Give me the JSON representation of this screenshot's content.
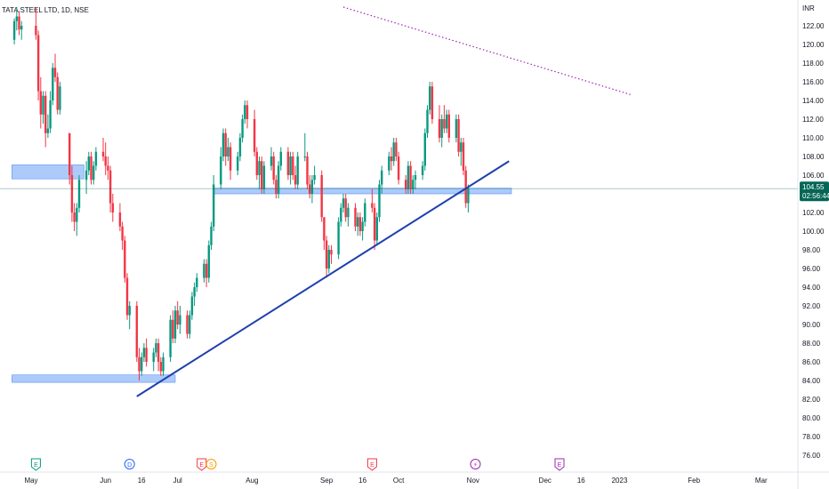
{
  "header": {
    "symbol_title": "TATA STEEL LTD, 1D, NSE"
  },
  "colors": {
    "up": "#089981",
    "down": "#f23645",
    "zone": "#90b8f8",
    "trend": "#1e3fae",
    "dotted": "#9c27b0",
    "price": "#056656",
    "event_e": "#089981",
    "event_d": "#2962ff",
    "event_er": "#f23645",
    "event_s": "#ff9800",
    "event_split": "#9c27b0"
  },
  "chart_data": {
    "type": "candlestick",
    "title": "TATA STEEL LTD, 1D, NSE",
    "currency_label": "INR",
    "y_range": [
      75,
      124
    ],
    "y_ticks": [
      "122.00",
      "120.00",
      "118.00",
      "116.00",
      "114.00",
      "112.00",
      "110.00",
      "108.00",
      "106.00",
      "104.00",
      "102.00",
      "100.00",
      "98.00",
      "96.00",
      "94.00",
      "92.00",
      "90.00",
      "88.00",
      "86.00",
      "84.00",
      "82.00",
      "80.00",
      "78.00",
      "76.00"
    ],
    "x_labels": [
      {
        "label": "May",
        "day": 0
      },
      {
        "label": "Jun",
        "day": 31
      },
      {
        "label": "16",
        "day": 46
      },
      {
        "label": "Jul",
        "day": 61
      },
      {
        "label": "Aug",
        "day": 92
      },
      {
        "label": "Sep",
        "day": 123
      },
      {
        "label": "16",
        "day": 138
      },
      {
        "label": "Oct",
        "day": 153
      },
      {
        "label": "Nov",
        "day": 184
      },
      {
        "label": "Dec",
        "day": 214
      },
      {
        "label": "16",
        "day": 229
      },
      {
        "label": "2023",
        "day": 245
      },
      {
        "label": "Feb",
        "day": 276
      },
      {
        "label": "Mar",
        "day": 304
      }
    ],
    "candles": [
      [
        -7,
        120.5,
        122.8,
        120.0,
        122.5
      ],
      [
        -6,
        122.5,
        124.0,
        121.5,
        123.0
      ],
      [
        -5,
        123.0,
        123.6,
        121.0,
        121.6
      ],
      [
        -4,
        121.6,
        122.5,
        120.5,
        122.0
      ],
      [
        2,
        122.0,
        124.0,
        120.5,
        121.0
      ],
      [
        3,
        121.0,
        121.5,
        114.0,
        115.0
      ],
      [
        4,
        115.0,
        116.5,
        111.0,
        112.5
      ],
      [
        5,
        112.5,
        115.0,
        111.5,
        114.5
      ],
      [
        6,
        114.5,
        115.0,
        109.0,
        110.5
      ],
      [
        7,
        110.5,
        112.5,
        110.0,
        111.0
      ],
      [
        8,
        111.0,
        115.0,
        110.5,
        114.0
      ],
      [
        9,
        114.0,
        118.0,
        113.5,
        117.5
      ],
      [
        10,
        117.5,
        119.0,
        116.0,
        116.5
      ],
      [
        11,
        116.5,
        117.0,
        112.5,
        113.0
      ],
      [
        12,
        113.0,
        116.0,
        112.5,
        115.5
      ],
      [
        16,
        110.5,
        110.5,
        105.0,
        106.0
      ],
      [
        17,
        106.0,
        107.0,
        101.0,
        102.0
      ],
      [
        18,
        102.0,
        103.0,
        100.0,
        101.0
      ],
      [
        19,
        101.0,
        103.0,
        99.5,
        102.5
      ],
      [
        20,
        102.5,
        106.0,
        102.0,
        105.5
      ],
      [
        23,
        105.5,
        107.5,
        104.0,
        106.5
      ],
      [
        24,
        106.5,
        108.5,
        106.0,
        108.0
      ],
      [
        25,
        108.0,
        108.5,
        105.0,
        105.5
      ],
      [
        26,
        105.5,
        107.5,
        105.0,
        107.0
      ],
      [
        27,
        107.0,
        109.0,
        106.5,
        108.5
      ],
      [
        30,
        108.5,
        110.0,
        107.5,
        108.0
      ],
      [
        31,
        108.0,
        109.5,
        106.0,
        107.0
      ],
      [
        32,
        107.0,
        108.0,
        105.5,
        106.5
      ],
      [
        33,
        106.5,
        107.0,
        102.0,
        103.0
      ],
      [
        34,
        103.0,
        104.0,
        101.0,
        102.0
      ],
      [
        37,
        102.0,
        103.0,
        100.0,
        100.5
      ],
      [
        38,
        100.5,
        101.0,
        98.0,
        99.0
      ],
      [
        39,
        99.0,
        99.5,
        94.5,
        95.0
      ],
      [
        40,
        95.0,
        95.5,
        90.5,
        91.0
      ],
      [
        41,
        91.0,
        92.5,
        89.5,
        92.0
      ],
      [
        44,
        92.0,
        92.5,
        86.0,
        86.5
      ],
      [
        45,
        86.5,
        87.5,
        84.0,
        85.0
      ],
      [
        46,
        85.0,
        87.0,
        84.5,
        86.5
      ],
      [
        47,
        86.5,
        88.0,
        86.0,
        87.5
      ],
      [
        48,
        87.5,
        88.5,
        85.5,
        86.0
      ],
      [
        51,
        86.0,
        87.5,
        85.0,
        87.0
      ],
      [
        52,
        87.0,
        88.5,
        86.5,
        88.0
      ],
      [
        53,
        88.0,
        88.5,
        85.0,
        86.0
      ],
      [
        54,
        86.0,
        86.5,
        84.5,
        85.0
      ],
      [
        55,
        85.0,
        87.0,
        84.5,
        86.5
      ],
      [
        58,
        86.5,
        91.0,
        86.0,
        90.5
      ],
      [
        59,
        90.5,
        91.5,
        88.0,
        88.5
      ],
      [
        60,
        88.5,
        92.0,
        88.0,
        91.5
      ],
      [
        61,
        91.5,
        92.5,
        89.5,
        90.0
      ],
      [
        62,
        90.0,
        92.0,
        89.0,
        91.0
      ],
      [
        65,
        91.0,
        91.5,
        88.5,
        89.0
      ],
      [
        66,
        89.0,
        91.5,
        88.5,
        91.0
      ],
      [
        67,
        91.0,
        93.5,
        90.5,
        93.0
      ],
      [
        68,
        93.0,
        94.5,
        92.0,
        94.0
      ],
      [
        69,
        94.0,
        95.5,
        93.5,
        95.0
      ],
      [
        72,
        95.0,
        97.0,
        94.5,
        96.5
      ],
      [
        73,
        96.5,
        97.0,
        94.0,
        95.0
      ],
      [
        74,
        95.0,
        99.0,
        94.5,
        98.5
      ],
      [
        75,
        98.5,
        101.0,
        98.0,
        100.5
      ],
      [
        76,
        100.5,
        106.0,
        100.0,
        105.0
      ],
      [
        79,
        105.0,
        109.0,
        104.5,
        108.0
      ],
      [
        80,
        108.0,
        111.0,
        107.5,
        110.5
      ],
      [
        81,
        110.5,
        111.0,
        107.0,
        108.0
      ],
      [
        82,
        108.0,
        110.0,
        107.5,
        109.0
      ],
      [
        83,
        109.0,
        109.5,
        105.5,
        106.5
      ],
      [
        86,
        106.5,
        108.5,
        106.0,
        108.0
      ],
      [
        87,
        108.0,
        110.5,
        107.5,
        110.0
      ],
      [
        88,
        110.0,
        112.5,
        109.5,
        112.0
      ],
      [
        89,
        112.0,
        114.0,
        111.5,
        113.5
      ],
      [
        90,
        113.5,
        114.0,
        111.0,
        112.0
      ],
      [
        93,
        112.0,
        113.0,
        108.0,
        108.5
      ],
      [
        94,
        108.5,
        109.0,
        105.5,
        106.0
      ],
      [
        95,
        106.0,
        108.0,
        104.5,
        107.5
      ],
      [
        96,
        107.5,
        108.0,
        104.0,
        104.5
      ],
      [
        97,
        104.5,
        107.5,
        104.0,
        107.0
      ],
      [
        100,
        107.0,
        109.0,
        106.5,
        108.0
      ],
      [
        101,
        108.0,
        108.5,
        105.0,
        105.5
      ],
      [
        102,
        105.5,
        106.0,
        103.5,
        104.0
      ],
      [
        103,
        104.0,
        107.5,
        103.5,
        107.0
      ],
      [
        104,
        107.0,
        109.0,
        106.5,
        108.5
      ],
      [
        107,
        108.5,
        109.0,
        105.5,
        106.0
      ],
      [
        108,
        106.0,
        108.5,
        105.0,
        108.0
      ],
      [
        109,
        108.0,
        108.5,
        105.5,
        106.0
      ],
      [
        110,
        106.0,
        107.0,
        104.5,
        105.0
      ],
      [
        111,
        105.0,
        108.5,
        104.5,
        108.0
      ],
      [
        114,
        108.0,
        110.5,
        107.5,
        108.0
      ],
      [
        115,
        108.0,
        108.5,
        104.5,
        105.0
      ],
      [
        116,
        105.0,
        106.0,
        103.5,
        104.0
      ],
      [
        117,
        104.0,
        106.0,
        103.0,
        105.5
      ],
      [
        118,
        105.5,
        107.0,
        105.0,
        106.0
      ],
      [
        121,
        106.0,
        106.5,
        101.0,
        101.5
      ],
      [
        122,
        101.5,
        101.5,
        98.0,
        99.0
      ],
      [
        123,
        99.0,
        99.5,
        95.0,
        96.0
      ],
      [
        124,
        96.0,
        98.5,
        95.5,
        98.0
      ],
      [
        125,
        98.0,
        98.5,
        96.5,
        97.5
      ],
      [
        128,
        97.5,
        101.5,
        97.0,
        101.0
      ],
      [
        129,
        101.0,
        103.0,
        100.5,
        102.5
      ],
      [
        130,
        102.5,
        104.0,
        102.0,
        103.5
      ],
      [
        131,
        103.5,
        104.0,
        101.0,
        101.5
      ],
      [
        132,
        101.5,
        103.0,
        100.5,
        102.5
      ],
      [
        135,
        102.5,
        103.0,
        100.0,
        100.5
      ],
      [
        136,
        100.5,
        102.0,
        99.5,
        101.5
      ],
      [
        137,
        101.5,
        102.0,
        99.5,
        100.0
      ],
      [
        138,
        100.0,
        101.5,
        99.0,
        101.0
      ],
      [
        139,
        101.0,
        103.5,
        100.5,
        103.0
      ],
      [
        142,
        103.0,
        104.5,
        102.0,
        102.5
      ],
      [
        143,
        102.5,
        103.0,
        98.0,
        99.0
      ],
      [
        144,
        99.0,
        102.0,
        98.5,
        101.5
      ],
      [
        145,
        101.5,
        105.5,
        101.0,
        105.0
      ],
      [
        146,
        105.0,
        107.0,
        104.0,
        106.5
      ],
      [
        149,
        106.5,
        108.5,
        106.0,
        108.0
      ],
      [
        150,
        108.0,
        109.0,
        106.5,
        107.5
      ],
      [
        151,
        107.5,
        110.0,
        107.0,
        109.5
      ],
      [
        152,
        109.5,
        110.0,
        107.5,
        108.0
      ],
      [
        153,
        108.0,
        108.5,
        105.0,
        105.5
      ],
      [
        156,
        105.5,
        106.0,
        104.0,
        104.5
      ],
      [
        157,
        104.5,
        107.5,
        104.0,
        107.0
      ],
      [
        158,
        107.0,
        107.5,
        104.0,
        104.5
      ],
      [
        159,
        104.5,
        106.0,
        104.0,
        105.5
      ],
      [
        160,
        105.5,
        106.5,
        104.5,
        106.0
      ],
      [
        163,
        106.0,
        107.5,
        105.5,
        107.0
      ],
      [
        164,
        107.0,
        111.0,
        106.5,
        110.5
      ],
      [
        165,
        110.5,
        113.5,
        110.0,
        113.0
      ],
      [
        166,
        113.0,
        116.0,
        112.5,
        115.5
      ],
      [
        167,
        115.5,
        116.0,
        111.5,
        112.0
      ],
      [
        170,
        112.0,
        113.5,
        109.5,
        110.0
      ],
      [
        171,
        110.0,
        112.5,
        109.0,
        112.0
      ],
      [
        172,
        112.0,
        113.5,
        110.5,
        111.0
      ],
      [
        173,
        111.0,
        113.0,
        110.5,
        112.5
      ],
      [
        174,
        112.5,
        113.0,
        109.5,
        110.0
      ],
      [
        177,
        110.0,
        112.5,
        109.5,
        112.0
      ],
      [
        178,
        112.0,
        112.5,
        108.0,
        108.5
      ],
      [
        179,
        108.5,
        110.0,
        107.0,
        109.5
      ],
      [
        180,
        109.5,
        110.0,
        106.0,
        106.5
      ],
      [
        181,
        106.5,
        107.0,
        102.5,
        103.0
      ],
      [
        182,
        103.0,
        105.0,
        102.0,
        104.55
      ]
    ],
    "zones": [
      {
        "name": "resistance-zone-left",
        "x_start": -8,
        "x_end": 22,
        "y_low": 105.6,
        "y_high": 107.1
      },
      {
        "name": "support-zone-middle",
        "x_start": 76,
        "x_end": 200,
        "y_low": 104.0,
        "y_high": 104.6
      },
      {
        "name": "support-zone-bottom",
        "x_start": -8,
        "x_end": 60,
        "y_low": 83.8,
        "y_high": 84.6
      }
    ],
    "trendline": {
      "x1": 44,
      "y1": 82.3,
      "x2": 199,
      "y2": 107.5
    },
    "dotted_line": {
      "x1": 130,
      "y1": 124.0,
      "x2": 250,
      "y2": 114.6
    },
    "last_price": {
      "value": "104.55",
      "countdown": "02:56:44",
      "y": 104.55
    },
    "events": [
      {
        "label": "E",
        "day": 2,
        "kind": "e"
      },
      {
        "label": "D",
        "day": 41,
        "kind": "d"
      },
      {
        "label": "E",
        "day": 71,
        "kind": "er"
      },
      {
        "label": "S",
        "day": 75,
        "kind": "s"
      },
      {
        "label": "E",
        "day": 142,
        "kind": "er"
      },
      {
        "label": "⚡",
        "day": 185,
        "kind": "split"
      },
      {
        "label": "E",
        "day": 220,
        "kind": "split"
      }
    ]
  }
}
